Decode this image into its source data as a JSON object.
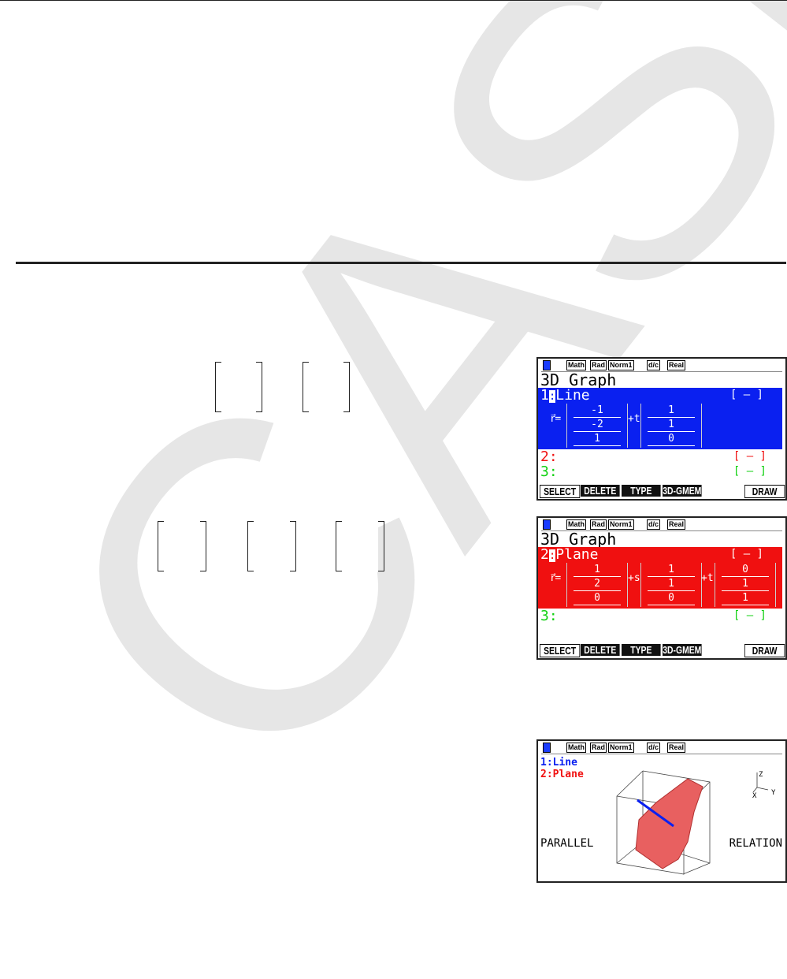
{
  "watermark": "CASIO",
  "status_badges": [
    "Math",
    "Rad",
    "Norm1",
    "d/c",
    "Real"
  ],
  "screen1": {
    "title": "3D Graph",
    "items": [
      {
        "num": "1",
        "sep": ":",
        "type": "Line",
        "style": "[ — ]"
      },
      {
        "num": "2",
        "sep": ":",
        "style": "[ — ]"
      },
      {
        "num": "3",
        "sep": ":",
        "style": "[ — ]"
      }
    ],
    "equation": {
      "lhs": "r⃗=",
      "p": [
        "-1",
        "-2",
        "1"
      ],
      "param": "+t",
      "d": [
        "1",
        "1",
        "0"
      ]
    },
    "fkeys": [
      "SELECT",
      "DELETE",
      "TYPE",
      "3D-GMEM",
      "DRAW"
    ]
  },
  "screen2": {
    "title": "3D Graph",
    "items": [
      {
        "num": "2",
        "sep": ":",
        "type": "Plane",
        "style": "[ — ]"
      },
      {
        "num": "3",
        "sep": ":",
        "style": "[ — ]"
      }
    ],
    "equation": {
      "lhs": "r⃗=",
      "p": [
        "1",
        "2",
        "0"
      ],
      "param1": "+s",
      "d1": [
        "1",
        "1",
        "0"
      ],
      "param2": "+t",
      "d2": [
        "0",
        "1",
        "1"
      ]
    },
    "fkeys": [
      "SELECT",
      "DELETE",
      "TYPE",
      "3D-GMEM",
      "DRAW"
    ]
  },
  "screen3": {
    "legend": [
      "1:Line",
      "2:Plane"
    ],
    "left_text": "PARALLEL",
    "right_text": "RELATION",
    "axes": [
      "Z",
      "X",
      "Y"
    ]
  },
  "colors": {
    "line": "#0a20f0",
    "plane": "#f01010",
    "graph3": "#10d010"
  }
}
